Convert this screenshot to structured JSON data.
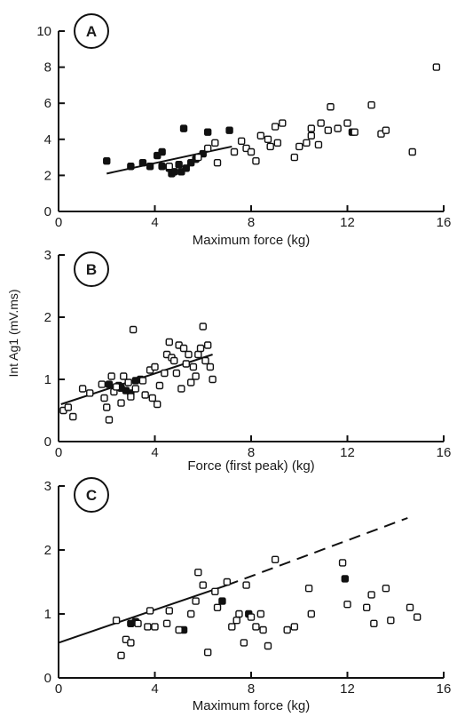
{
  "ylabel": "Int Ag1 (mV.ms)",
  "chart_data": [
    {
      "type": "scatter",
      "panel_label": "A",
      "xlabel": "Maximum force (kg)",
      "xlim": [
        0,
        16
      ],
      "ylim": [
        0,
        10
      ],
      "xticks": [
        0,
        4,
        8,
        12,
        16
      ],
      "yticks": [
        0,
        2,
        4,
        6,
        8,
        10
      ],
      "series": [
        {
          "marker": "filled",
          "points": [
            [
              2.0,
              2.8
            ],
            [
              3.0,
              2.5
            ],
            [
              3.5,
              2.7
            ],
            [
              3.8,
              2.5
            ],
            [
              4.1,
              3.1
            ],
            [
              4.3,
              3.3
            ],
            [
              4.3,
              2.5
            ],
            [
              4.6,
              2.4
            ],
            [
              4.7,
              2.1
            ],
            [
              4.8,
              2.2
            ],
            [
              5.0,
              2.6
            ],
            [
              5.1,
              2.2
            ],
            [
              5.2,
              4.6
            ],
            [
              5.3,
              2.4
            ],
            [
              5.5,
              2.7
            ],
            [
              5.7,
              2.9
            ],
            [
              6.0,
              3.2
            ],
            [
              6.2,
              4.4
            ],
            [
              7.1,
              4.5
            ],
            [
              12.2,
              4.4
            ]
          ]
        },
        {
          "marker": "open",
          "points": [
            [
              4.6,
              2.5
            ],
            [
              5.8,
              3.0
            ],
            [
              6.2,
              3.5
            ],
            [
              6.5,
              3.8
            ],
            [
              6.6,
              2.7
            ],
            [
              7.3,
              3.3
            ],
            [
              7.6,
              3.9
            ],
            [
              7.8,
              3.5
            ],
            [
              8.0,
              3.3
            ],
            [
              8.2,
              2.8
            ],
            [
              8.4,
              4.2
            ],
            [
              8.7,
              4.0
            ],
            [
              8.8,
              3.6
            ],
            [
              9.0,
              4.7
            ],
            [
              9.1,
              3.8
            ],
            [
              9.3,
              4.9
            ],
            [
              9.8,
              3.0
            ],
            [
              10.0,
              3.6
            ],
            [
              10.3,
              3.8
            ],
            [
              10.5,
              4.6
            ],
            [
              10.5,
              4.2
            ],
            [
              10.8,
              3.7
            ],
            [
              10.9,
              4.9
            ],
            [
              11.2,
              4.5
            ],
            [
              11.3,
              5.8
            ],
            [
              11.6,
              4.6
            ],
            [
              12.0,
              4.9
            ],
            [
              12.3,
              4.4
            ],
            [
              13.0,
              5.9
            ],
            [
              13.4,
              4.3
            ],
            [
              13.6,
              4.5
            ],
            [
              14.7,
              3.3
            ],
            [
              15.7,
              8.0
            ]
          ]
        }
      ],
      "fit_lines": [
        {
          "style": "solid",
          "x": [
            2.0,
            7.2
          ],
          "y": [
            2.1,
            3.6
          ]
        }
      ]
    },
    {
      "type": "scatter",
      "panel_label": "B",
      "xlabel": "Force (first peak) (kg)",
      "xlim": [
        0,
        16
      ],
      "ylim": [
        0,
        3
      ],
      "xticks": [
        0,
        4,
        8,
        12,
        16
      ],
      "yticks": [
        0,
        1,
        2,
        3
      ],
      "series": [
        {
          "marker": "filled",
          "points": [
            [
              2.1,
              0.92
            ],
            [
              2.5,
              0.9
            ],
            [
              2.8,
              0.82
            ],
            [
              3.0,
              0.78
            ],
            [
              3.2,
              0.98
            ],
            [
              3.4,
              1.0
            ],
            [
              2.6,
              0.86
            ]
          ]
        },
        {
          "marker": "open",
          "points": [
            [
              0.2,
              0.5
            ],
            [
              0.4,
              0.55
            ],
            [
              0.6,
              0.4
            ],
            [
              1.0,
              0.85
            ],
            [
              1.3,
              0.78
            ],
            [
              1.8,
              0.92
            ],
            [
              1.9,
              0.7
            ],
            [
              2.0,
              0.55
            ],
            [
              2.1,
              0.35
            ],
            [
              2.2,
              1.05
            ],
            [
              2.3,
              0.8
            ],
            [
              2.4,
              0.88
            ],
            [
              2.6,
              0.62
            ],
            [
              2.7,
              1.05
            ],
            [
              2.9,
              0.95
            ],
            [
              3.0,
              0.72
            ],
            [
              3.1,
              1.8
            ],
            [
              3.2,
              0.85
            ],
            [
              3.5,
              0.98
            ],
            [
              3.6,
              0.75
            ],
            [
              3.8,
              1.15
            ],
            [
              3.9,
              0.7
            ],
            [
              4.0,
              1.2
            ],
            [
              4.1,
              0.6
            ],
            [
              4.2,
              0.9
            ],
            [
              4.4,
              1.1
            ],
            [
              4.5,
              1.4
            ],
            [
              4.6,
              1.6
            ],
            [
              4.7,
              1.35
            ],
            [
              4.8,
              1.3
            ],
            [
              4.9,
              1.1
            ],
            [
              5.0,
              1.55
            ],
            [
              5.1,
              0.85
            ],
            [
              5.2,
              1.5
            ],
            [
              5.3,
              1.25
            ],
            [
              5.4,
              1.4
            ],
            [
              5.5,
              0.95
            ],
            [
              5.6,
              1.2
            ],
            [
              5.7,
              1.05
            ],
            [
              5.8,
              1.4
            ],
            [
              5.9,
              1.5
            ],
            [
              6.0,
              1.85
            ],
            [
              6.1,
              1.3
            ],
            [
              6.2,
              1.55
            ],
            [
              6.3,
              1.2
            ],
            [
              6.4,
              1.0
            ]
          ]
        }
      ],
      "fit_lines": [
        {
          "style": "solid",
          "x": [
            0.1,
            6.4
          ],
          "y": [
            0.6,
            1.4
          ]
        }
      ]
    },
    {
      "type": "scatter",
      "panel_label": "C",
      "xlabel": "Maximum force (kg)",
      "xlim": [
        0,
        16
      ],
      "ylim": [
        0,
        3
      ],
      "xticks": [
        0,
        4,
        8,
        12,
        16
      ],
      "yticks": [
        0,
        1,
        2,
        3
      ],
      "series": [
        {
          "marker": "filled",
          "points": [
            [
              3.0,
              0.85
            ],
            [
              3.2,
              0.88
            ],
            [
              5.2,
              0.75
            ],
            [
              6.8,
              1.2
            ],
            [
              7.9,
              1.0
            ],
            [
              11.9,
              1.55
            ]
          ]
        },
        {
          "marker": "open",
          "points": [
            [
              2.4,
              0.9
            ],
            [
              2.6,
              0.35
            ],
            [
              2.8,
              0.6
            ],
            [
              3.0,
              0.55
            ],
            [
              3.3,
              0.85
            ],
            [
              3.7,
              0.8
            ],
            [
              3.8,
              1.05
            ],
            [
              4.0,
              0.8
            ],
            [
              4.5,
              0.85
            ],
            [
              4.6,
              1.05
            ],
            [
              5.0,
              0.75
            ],
            [
              5.5,
              1.0
            ],
            [
              5.7,
              1.2
            ],
            [
              5.8,
              1.65
            ],
            [
              6.0,
              1.45
            ],
            [
              6.2,
              0.4
            ],
            [
              6.5,
              1.35
            ],
            [
              6.6,
              1.1
            ],
            [
              7.0,
              1.5
            ],
            [
              7.2,
              0.8
            ],
            [
              7.4,
              0.9
            ],
            [
              7.5,
              1.0
            ],
            [
              7.7,
              0.55
            ],
            [
              7.8,
              1.45
            ],
            [
              8.0,
              0.95
            ],
            [
              8.2,
              0.8
            ],
            [
              8.4,
              1.0
            ],
            [
              8.5,
              0.75
            ],
            [
              8.7,
              0.5
            ],
            [
              9.0,
              1.85
            ],
            [
              9.5,
              0.75
            ],
            [
              9.8,
              0.8
            ],
            [
              10.4,
              1.4
            ],
            [
              10.5,
              1.0
            ],
            [
              11.8,
              1.8
            ],
            [
              12.0,
              1.15
            ],
            [
              12.8,
              1.1
            ],
            [
              13.0,
              1.3
            ],
            [
              13.1,
              0.85
            ],
            [
              13.6,
              1.4
            ],
            [
              13.8,
              0.9
            ],
            [
              14.6,
              1.1
            ],
            [
              14.9,
              0.95
            ]
          ]
        }
      ],
      "fit_lines": [
        {
          "style": "solid",
          "x": [
            0.0,
            7.0
          ],
          "y": [
            0.55,
            1.45
          ]
        },
        {
          "style": "dashed",
          "x": [
            7.0,
            14.5
          ],
          "y": [
            1.45,
            2.5
          ]
        }
      ]
    }
  ]
}
